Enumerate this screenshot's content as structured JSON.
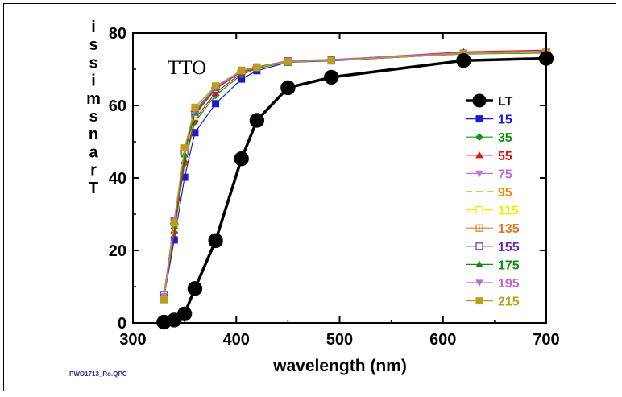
{
  "chart_data": {
    "type": "line",
    "title": "",
    "annotation": "TTO",
    "xlabel": "wavelength (nm)",
    "ylabel": "Transmissi",
    "ylabel_chars": [
      "i",
      "s",
      "s",
      "i",
      "m",
      "s",
      "n",
      "a",
      "r",
      "T"
    ],
    "footer_note": "PWO1713_Ro.QPC",
    "xlim": [
      300,
      700
    ],
    "ylim": [
      0,
      80
    ],
    "xticks": [
      "300",
      "400",
      "500",
      "600",
      "700"
    ],
    "yticks": [
      "0",
      "20",
      "40",
      "60",
      "80"
    ],
    "grid": false,
    "legend_position": "right",
    "x": [
      330,
      340,
      350,
      360,
      380,
      405,
      420,
      450,
      492,
      620,
      700
    ],
    "series": [
      {
        "name": "LT",
        "color": "#000000",
        "marker": "circle",
        "values": [
          0.2,
          0.8,
          2.5,
          9.5,
          22.7,
          45.3,
          55.9,
          64.9,
          67.8,
          72.4,
          73.0
        ]
      },
      {
        "name": "15",
        "color": "#1b1bd6",
        "marker": "square",
        "values": [
          7.0,
          22.9,
          40.2,
          52.5,
          60.5,
          67.3,
          69.6,
          71.9,
          72.3,
          74.3,
          74.6
        ]
      },
      {
        "name": "35",
        "color": "#129412",
        "marker": "diamond",
        "values": [
          6.8,
          25.0,
          44.0,
          55.5,
          62.8,
          68.5,
          70.2,
          72.0,
          72.4,
          74.2,
          74.5
        ]
      },
      {
        "name": "55",
        "color": "#e01515",
        "marker": "triangle-up",
        "values": [
          6.9,
          25.5,
          44.8,
          56.3,
          63.5,
          69.0,
          70.4,
          72.3,
          72.6,
          74.8,
          75.3
        ]
      },
      {
        "name": "75",
        "color": "#c070e0",
        "marker": "triangle-down",
        "values": [
          7.2,
          27.0,
          47.0,
          57.8,
          64.5,
          69.4,
          70.6,
          72.4,
          72.7,
          74.6,
          75.0
        ]
      },
      {
        "name": "95",
        "color": "#f08a10",
        "marker": "dash",
        "values": [
          7.0,
          27.3,
          47.5,
          58.4,
          64.9,
          69.6,
          70.7,
          72.3,
          72.6,
          74.5,
          74.9
        ]
      },
      {
        "name": "115",
        "color": "#f2ea10",
        "marker": "open-square",
        "values": [
          7.3,
          27.8,
          47.8,
          57.0,
          64.8,
          69.5,
          70.6,
          72.2,
          72.5,
          74.3,
          74.7
        ]
      },
      {
        "name": "135",
        "color": "#e07830",
        "marker": "crossed-square",
        "values": [
          7.6,
          28.0,
          48.0,
          58.5,
          65.2,
          69.7,
          70.6,
          72.3,
          72.6,
          74.4,
          74.8
        ]
      },
      {
        "name": "155",
        "color": "#6a2cb8",
        "marker": "open-square",
        "values": [
          7.8,
          28.3,
          47.2,
          57.5,
          64.6,
          69.4,
          70.5,
          72.2,
          72.5,
          74.4,
          74.8
        ]
      },
      {
        "name": "175",
        "color": "#128a12",
        "marker": "triangle-up",
        "values": [
          7.1,
          26.8,
          46.5,
          58.0,
          64.8,
          69.6,
          70.6,
          72.3,
          72.6,
          74.5,
          74.9
        ]
      },
      {
        "name": "195",
        "color": "#b868d8",
        "marker": "triangle-down",
        "values": [
          7.4,
          28.5,
          48.2,
          58.8,
          65.0,
          69.5,
          70.5,
          72.3,
          72.6,
          74.5,
          74.9
        ]
      },
      {
        "name": "215",
        "color": "#b8a01e",
        "marker": "square",
        "values": [
          6.4,
          27.6,
          48.3,
          59.5,
          65.4,
          69.6,
          70.5,
          72.0,
          72.4,
          74.3,
          74.8
        ]
      }
    ]
  }
}
